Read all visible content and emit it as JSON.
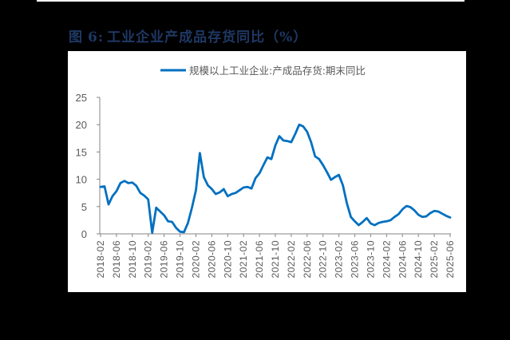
{
  "figure": {
    "label": "图",
    "number": "6:",
    "title": "工业企业产成品存货同比（%）"
  },
  "chart_data": {
    "type": "line",
    "title": "",
    "xlabel": "",
    "ylabel": "",
    "ylim": [
      0,
      25
    ],
    "yticks": [
      0,
      5,
      10,
      15,
      20,
      25
    ],
    "grid": false,
    "legend_position": "top",
    "xtick_labels": [
      "2018-02",
      "2018-06",
      "2018-10",
      "2019-02",
      "2019-06",
      "2019-10",
      "2020-02",
      "2020-06",
      "2020-10",
      "2021-02",
      "2021-06",
      "2021-10",
      "2022-02",
      "2022-06",
      "2022-10",
      "2023-02",
      "2023-06",
      "2023-10",
      "2024-02",
      "2024-06",
      "2024-10",
      "2025-02",
      "2025-06"
    ],
    "x": [
      "2018-02",
      "2018-03",
      "2018-04",
      "2018-05",
      "2018-06",
      "2018-07",
      "2018-08",
      "2018-09",
      "2018-10",
      "2018-11",
      "2018-12",
      "2019-01",
      "2019-02",
      "2019-03",
      "2019-04",
      "2019-05",
      "2019-06",
      "2019-07",
      "2019-08",
      "2019-09",
      "2019-10",
      "2019-11",
      "2019-12",
      "2020-01",
      "2020-02",
      "2020-03",
      "2020-04",
      "2020-05",
      "2020-06",
      "2020-07",
      "2020-08",
      "2020-09",
      "2020-10",
      "2020-11",
      "2020-12",
      "2021-01",
      "2021-02",
      "2021-03",
      "2021-04",
      "2021-05",
      "2021-06",
      "2021-07",
      "2021-08",
      "2021-09",
      "2021-10",
      "2021-11",
      "2021-12",
      "2022-01",
      "2022-02",
      "2022-03",
      "2022-04",
      "2022-05",
      "2022-06",
      "2022-07",
      "2022-08",
      "2022-09",
      "2022-10",
      "2022-11",
      "2022-12",
      "2023-01",
      "2023-02",
      "2023-03",
      "2023-04",
      "2023-05",
      "2023-06",
      "2023-07",
      "2023-08",
      "2023-09",
      "2023-10",
      "2023-11",
      "2023-12",
      "2024-01",
      "2024-02",
      "2024-03",
      "2024-04",
      "2024-05",
      "2024-06",
      "2024-07",
      "2024-08",
      "2024-09",
      "2024-10",
      "2024-11",
      "2024-12",
      "2025-01",
      "2025-02",
      "2025-03",
      "2025-04",
      "2025-05",
      "2025-06"
    ],
    "series": [
      {
        "name": "规模以上工业企业:产成品存货:期末同比",
        "color": "#0070c0",
        "values": [
          8.6,
          8.7,
          5.4,
          6.9,
          7.8,
          9.3,
          9.7,
          9.3,
          9.4,
          8.8,
          7.5,
          7.0,
          6.3,
          0.2,
          4.8,
          4.1,
          3.4,
          2.3,
          2.2,
          1.1,
          0.4,
          0.3,
          2.0,
          4.8,
          8.0,
          14.8,
          10.4,
          8.9,
          8.2,
          7.3,
          7.6,
          8.2,
          6.9,
          7.3,
          7.5,
          8.0,
          8.5,
          8.6,
          8.3,
          10.2,
          11.1,
          12.6,
          14.0,
          13.7,
          16.2,
          17.9,
          17.1,
          17.0,
          16.8,
          18.3,
          20.0,
          19.7,
          18.7,
          16.8,
          14.2,
          13.7,
          12.6,
          11.3,
          9.9,
          10.4,
          10.8,
          8.9,
          5.6,
          3.1,
          2.3,
          1.6,
          2.2,
          2.9,
          1.9,
          1.6,
          2.0,
          2.2,
          2.3,
          2.5,
          3.1,
          3.6,
          4.5,
          5.1,
          4.9,
          4.3,
          3.5,
          3.1,
          3.2,
          3.8,
          4.2,
          4.1,
          3.7,
          3.3,
          3.0
        ]
      }
    ]
  }
}
